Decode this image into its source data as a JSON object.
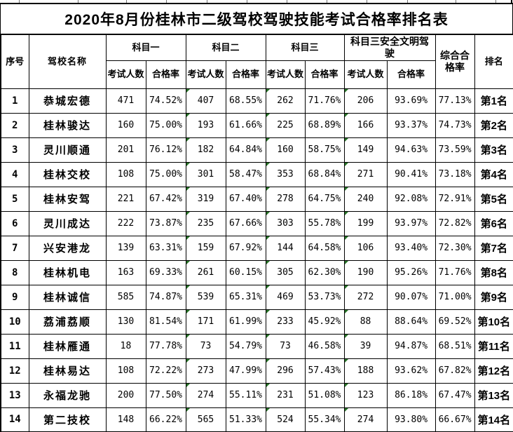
{
  "title": "2020年8月份桂林市二级驾校驾驶技能考试合格率排名表",
  "colors": {
    "border": "#000000",
    "background": "#ffffff",
    "text": "#000000",
    "error_flag_green": "#267326"
  },
  "icons": {
    "cell_error_flag": "green-corner-triangle"
  },
  "table": {
    "headers": {
      "index": "序号",
      "school": "驾校名称",
      "subject1": "科目一",
      "subject2": "科目二",
      "subject3": "科目三",
      "subject4": "科目三安全文明驾驶",
      "exam_count": "考试人数",
      "pass_rate": "合格率",
      "overall": "综合合格率",
      "rank": "排名"
    },
    "rows": [
      {
        "index": "1",
        "school": "恭城宏德",
        "s1_count": "471",
        "s1_rate": "74.52%",
        "s2_count": "407",
        "s2_rate": "68.55%",
        "s3_count": "262",
        "s3_rate": "71.76%",
        "s4_count": "206",
        "s4_rate": "93.69%",
        "overall": "77.13%",
        "rank": "第1名"
      },
      {
        "index": "2",
        "school": "桂林骏达",
        "s1_count": "160",
        "s1_rate": "75.00%",
        "s2_count": "193",
        "s2_rate": "61.66%",
        "s3_count": "225",
        "s3_rate": "68.89%",
        "s4_count": "166",
        "s4_rate": "93.37%",
        "overall": "74.73%",
        "rank": "第2名"
      },
      {
        "index": "3",
        "school": "灵川顺通",
        "s1_count": "201",
        "s1_rate": "76.12%",
        "s2_count": "182",
        "s2_rate": "64.84%",
        "s3_count": "160",
        "s3_rate": "58.75%",
        "s4_count": "149",
        "s4_rate": "94.63%",
        "overall": "73.59%",
        "rank": "第3名"
      },
      {
        "index": "4",
        "school": "桂林交校",
        "s1_count": "108",
        "s1_rate": "75.00%",
        "s2_count": "301",
        "s2_rate": "58.47%",
        "s3_count": "353",
        "s3_rate": "68.84%",
        "s4_count": "271",
        "s4_rate": "90.41%",
        "overall": "73.18%",
        "rank": "第4名"
      },
      {
        "index": "5",
        "school": "桂林安驾",
        "s1_count": "221",
        "s1_rate": "67.42%",
        "s2_count": "319",
        "s2_rate": "67.40%",
        "s3_count": "278",
        "s3_rate": "64.75%",
        "s4_count": "240",
        "s4_rate": "92.08%",
        "overall": "72.91%",
        "rank": "第5名"
      },
      {
        "index": "6",
        "school": "灵川成达",
        "s1_count": "222",
        "s1_rate": "73.87%",
        "s2_count": "235",
        "s2_rate": "67.66%",
        "s3_count": "303",
        "s3_rate": "55.78%",
        "s4_count": "199",
        "s4_rate": "93.97%",
        "overall": "72.82%",
        "rank": "第6名"
      },
      {
        "index": "7",
        "school": "兴安港龙",
        "s1_count": "139",
        "s1_rate": "63.31%",
        "s2_count": "159",
        "s2_rate": "67.92%",
        "s3_count": "144",
        "s3_rate": "64.58%",
        "s4_count": "106",
        "s4_rate": "93.40%",
        "overall": "72.30%",
        "rank": "第7名"
      },
      {
        "index": "8",
        "school": "桂林机电",
        "s1_count": "163",
        "s1_rate": "69.33%",
        "s2_count": "261",
        "s2_rate": "60.15%",
        "s3_count": "305",
        "s3_rate": "62.30%",
        "s4_count": "190",
        "s4_rate": "95.26%",
        "overall": "71.76%",
        "rank": "第8名"
      },
      {
        "index": "9",
        "school": "桂林诚信",
        "s1_count": "585",
        "s1_rate": "74.87%",
        "s2_count": "539",
        "s2_rate": "65.31%",
        "s3_count": "469",
        "s3_rate": "53.73%",
        "s4_count": "272",
        "s4_rate": "90.07%",
        "overall": "71.00%",
        "rank": "第9名"
      },
      {
        "index": "10",
        "school": "荔浦荔顺",
        "s1_count": "130",
        "s1_rate": "81.54%",
        "s2_count": "171",
        "s2_rate": "61.99%",
        "s3_count": "233",
        "s3_rate": "45.92%",
        "s4_count": "88",
        "s4_rate": "88.64%",
        "overall": "69.52%",
        "rank": "第10名"
      },
      {
        "index": "11",
        "school": "桂林雁通",
        "s1_count": "18",
        "s1_rate": "77.78%",
        "s2_count": "73",
        "s2_rate": "54.79%",
        "s3_count": "73",
        "s3_rate": "46.58%",
        "s4_count": "39",
        "s4_rate": "94.87%",
        "overall": "68.51%",
        "rank": "第11名"
      },
      {
        "index": "12",
        "school": "桂林易达",
        "s1_count": "108",
        "s1_rate": "72.22%",
        "s2_count": "273",
        "s2_rate": "47.99%",
        "s3_count": "296",
        "s3_rate": "57.43%",
        "s4_count": "188",
        "s4_rate": "93.62%",
        "overall": "67.82%",
        "rank": "第12名"
      },
      {
        "index": "13",
        "school": "永福龙驰",
        "s1_count": "200",
        "s1_rate": "77.50%",
        "s2_count": "274",
        "s2_rate": "55.11%",
        "s3_count": "231",
        "s3_rate": "51.08%",
        "s4_count": "123",
        "s4_rate": "86.18%",
        "overall": "67.47%",
        "rank": "第13名"
      },
      {
        "index": "14",
        "school": "第二技校",
        "s1_count": "148",
        "s1_rate": "66.22%",
        "s2_count": "565",
        "s2_rate": "51.33%",
        "s3_count": "524",
        "s3_rate": "55.34%",
        "s4_count": "274",
        "s4_rate": "93.80%",
        "overall": "66.67%",
        "rank": "第14名"
      }
    ]
  }
}
